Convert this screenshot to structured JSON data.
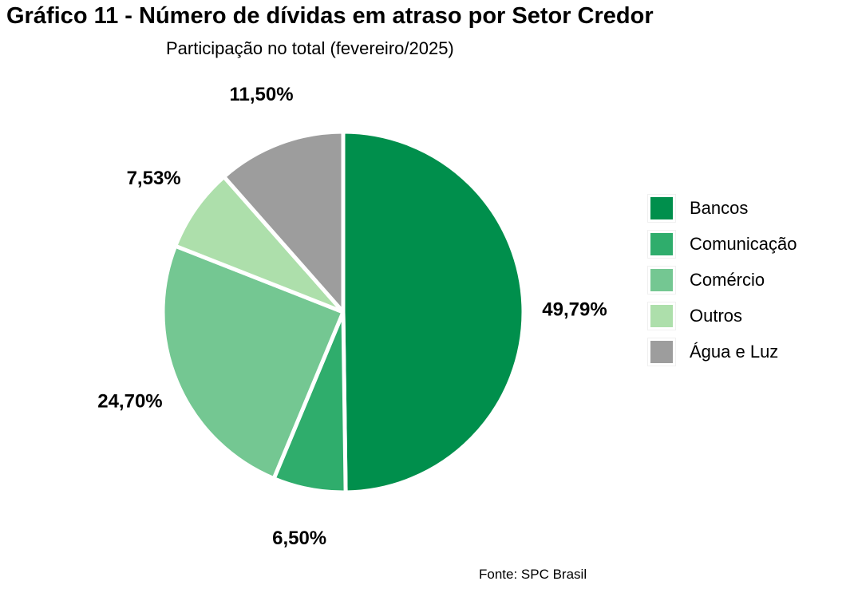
{
  "chart_data": {
    "type": "pie",
    "title": "Gráfico 11 - Número de dívidas em atraso por Setor Credor",
    "subtitle": "Participação no total (fevereiro/2025)",
    "categories": [
      "Bancos",
      "Comunicação",
      "Comércio",
      "Outros",
      "Água e Luz"
    ],
    "values": [
      49.79,
      6.5,
      24.7,
      7.53,
      11.5
    ],
    "value_labels": [
      "49,79%",
      "6,50%",
      "24,70%",
      "7,53%",
      "11,50%"
    ],
    "colors": [
      "#008f4c",
      "#2fad6c",
      "#74c792",
      "#addfab",
      "#9d9d9d"
    ],
    "legend_position": "right",
    "source": "Fonte: SPC Brasil"
  }
}
